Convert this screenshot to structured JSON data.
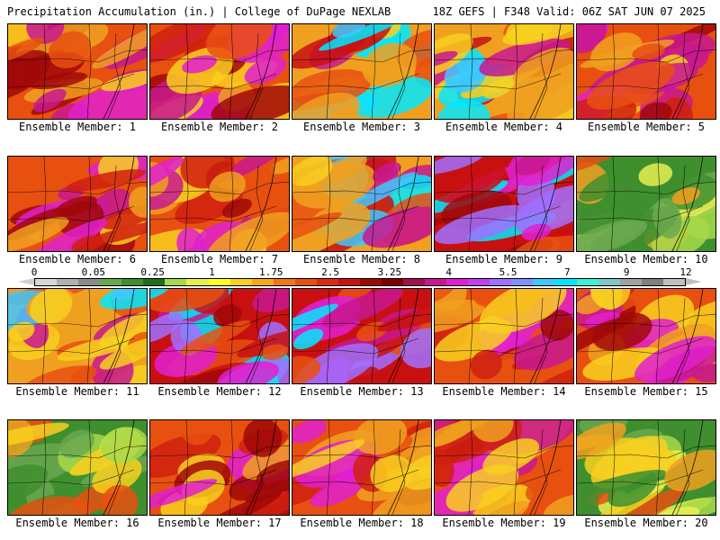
{
  "header": {
    "left": "Precipitation Accumulation (in.) | College of DuPage NEXLAB",
    "right": "18Z GEFS | F348 Valid: 06Z SAT JUN 07 2025"
  },
  "colorbar": {
    "labels": [
      "0",
      "0.05",
      "0.25",
      "1",
      "1.75",
      "2.5",
      "3.25",
      "4",
      "5.5",
      "7",
      "9",
      "12"
    ],
    "colors": [
      "#d8d8d8",
      "#b0b0b0",
      "#8c8c8c",
      "#6aa84f",
      "#3f8f2f",
      "#1e6e1e",
      "#a8d84a",
      "#e8f050",
      "#ffff20",
      "#f8d020",
      "#f8a818",
      "#f07818",
      "#e85010",
      "#e02810",
      "#c81010",
      "#a00808",
      "#800000",
      "#a01050",
      "#c81890",
      "#e020d0",
      "#c040f0",
      "#a070ff",
      "#8090ff",
      "#40c8ff",
      "#00e8ff",
      "#40f0d0",
      "#80c8c8",
      "#a0a0a0",
      "#808080",
      "#c0c0c0"
    ]
  },
  "members": [
    {
      "label": "Ensemble Member: 1",
      "style": "red-purple"
    },
    {
      "label": "Ensemble Member: 2",
      "style": "red-purple"
    },
    {
      "label": "Ensemble Member: 3",
      "style": "cyan-south"
    },
    {
      "label": "Ensemble Member: 4",
      "style": "cyan-south"
    },
    {
      "label": "Ensemble Member: 5",
      "style": "red-purple"
    },
    {
      "label": "Ensemble Member: 6",
      "style": "red-purple"
    },
    {
      "label": "Ensemble Member: 7",
      "style": "red-purple"
    },
    {
      "label": "Ensemble Member: 8",
      "style": "cyan-south"
    },
    {
      "label": "Ensemble Member: 9",
      "style": "purple-cyan"
    },
    {
      "label": "Ensemble Member: 10",
      "style": "green-yellow"
    },
    {
      "label": "Ensemble Member: 11",
      "style": "cyan-south"
    },
    {
      "label": "Ensemble Member: 12",
      "style": "purple-cyan"
    },
    {
      "label": "Ensemble Member: 13",
      "style": "purple-cyan"
    },
    {
      "label": "Ensemble Member: 14",
      "style": "red-purple"
    },
    {
      "label": "Ensemble Member: 15",
      "style": "red-purple"
    },
    {
      "label": "Ensemble Member: 16",
      "style": "green-yellow"
    },
    {
      "label": "Ensemble Member: 17",
      "style": "red-purple"
    },
    {
      "label": "Ensemble Member: 18",
      "style": "red-purple"
    },
    {
      "label": "Ensemble Member: 19",
      "style": "red-purple"
    },
    {
      "label": "Ensemble Member: 20",
      "style": "green-yellow"
    }
  ]
}
